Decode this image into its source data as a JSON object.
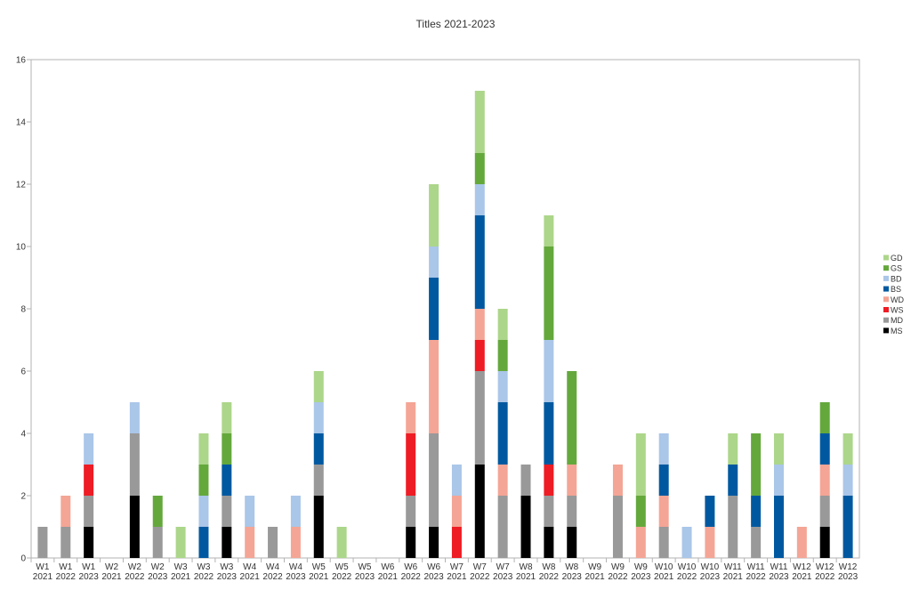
{
  "chart_data": {
    "type": "bar",
    "stacked": true,
    "title": "Titles 2021-2023",
    "xlabel": "",
    "ylabel": "",
    "ylim": [
      0,
      16
    ],
    "yticks": [
      0,
      2,
      4,
      6,
      8,
      10,
      12,
      14,
      16
    ],
    "grid": false,
    "legend_position": "right",
    "categories": [
      "W1 2021",
      "W1 2022",
      "W1 2023",
      "W2 2021",
      "W2 2022",
      "W2 2023",
      "W3 2021",
      "W3 2022",
      "W3 2023",
      "W4 2021",
      "W4 2022",
      "W4 2023",
      "W5 2021",
      "W5 2022",
      "W5 2023",
      "W6 2021",
      "W6 2022",
      "W6 2023",
      "W7 2021",
      "W7 2022",
      "W7 2023",
      "W8 2021",
      "W8 2022",
      "W8 2023",
      "W9 2021",
      "W9 2022",
      "W9 2023",
      "W10 2021",
      "W10 2022",
      "W10 2023",
      "W11 2021",
      "W11 2022",
      "W11 2023",
      "W12 2021",
      "W12 2022",
      "W12 2023"
    ],
    "series": [
      {
        "name": "MS",
        "color": "#000000",
        "values": [
          0,
          0,
          1,
          0,
          2,
          0,
          0,
          0,
          1,
          0,
          0,
          0,
          2,
          0,
          0,
          0,
          1,
          1,
          0,
          3,
          0,
          2,
          1,
          1,
          0,
          0,
          0,
          0,
          0,
          0,
          0,
          0,
          0,
          0,
          1,
          0
        ]
      },
      {
        "name": "MD",
        "color": "#999999",
        "values": [
          1,
          1,
          1,
          0,
          2,
          1,
          0,
          0,
          1,
          0,
          1,
          0,
          1,
          0,
          0,
          0,
          1,
          3,
          0,
          3,
          2,
          1,
          1,
          1,
          0,
          2,
          0,
          1,
          0,
          0,
          2,
          1,
          0,
          0,
          1,
          0
        ]
      },
      {
        "name": "WS",
        "color": "#ee1c24",
        "values": [
          0,
          0,
          1,
          0,
          0,
          0,
          0,
          0,
          0,
          0,
          0,
          0,
          0,
          0,
          0,
          0,
          2,
          0,
          1,
          1,
          0,
          0,
          1,
          0,
          0,
          0,
          0,
          0,
          0,
          0,
          0,
          0,
          0,
          0,
          0,
          0
        ]
      },
      {
        "name": "WD",
        "color": "#f4a595",
        "values": [
          0,
          1,
          0,
          0,
          0,
          0,
          0,
          0,
          0,
          1,
          0,
          1,
          0,
          0,
          0,
          0,
          1,
          3,
          1,
          1,
          1,
          0,
          0,
          1,
          0,
          1,
          1,
          1,
          0,
          1,
          0,
          0,
          0,
          1,
          1,
          0
        ]
      },
      {
        "name": "BS",
        "color": "#0059a0",
        "values": [
          0,
          0,
          0,
          0,
          0,
          0,
          0,
          1,
          1,
          0,
          0,
          0,
          1,
          0,
          0,
          0,
          0,
          2,
          0,
          3,
          2,
          0,
          2,
          0,
          0,
          0,
          0,
          1,
          0,
          1,
          1,
          1,
          2,
          0,
          1,
          2
        ]
      },
      {
        "name": "BD",
        "color": "#aac6e8",
        "values": [
          0,
          0,
          1,
          0,
          1,
          0,
          0,
          1,
          0,
          1,
          0,
          1,
          1,
          0,
          0,
          0,
          0,
          1,
          1,
          1,
          1,
          0,
          2,
          0,
          0,
          0,
          0,
          1,
          1,
          0,
          0,
          0,
          1,
          0,
          0,
          1
        ]
      },
      {
        "name": "GS",
        "color": "#64a83c",
        "values": [
          0,
          0,
          0,
          0,
          0,
          1,
          0,
          1,
          1,
          0,
          0,
          0,
          0,
          0,
          0,
          0,
          0,
          0,
          0,
          1,
          1,
          0,
          3,
          3,
          0,
          0,
          1,
          0,
          0,
          0,
          0,
          2,
          0,
          0,
          1,
          0
        ]
      },
      {
        "name": "GD",
        "color": "#acd68a",
        "values": [
          0,
          0,
          0,
          0,
          0,
          0,
          1,
          1,
          1,
          0,
          0,
          0,
          1,
          1,
          0,
          0,
          0,
          2,
          0,
          2,
          1,
          0,
          1,
          0,
          0,
          0,
          2,
          0,
          0,
          0,
          1,
          0,
          1,
          0,
          0,
          1
        ]
      }
    ]
  }
}
